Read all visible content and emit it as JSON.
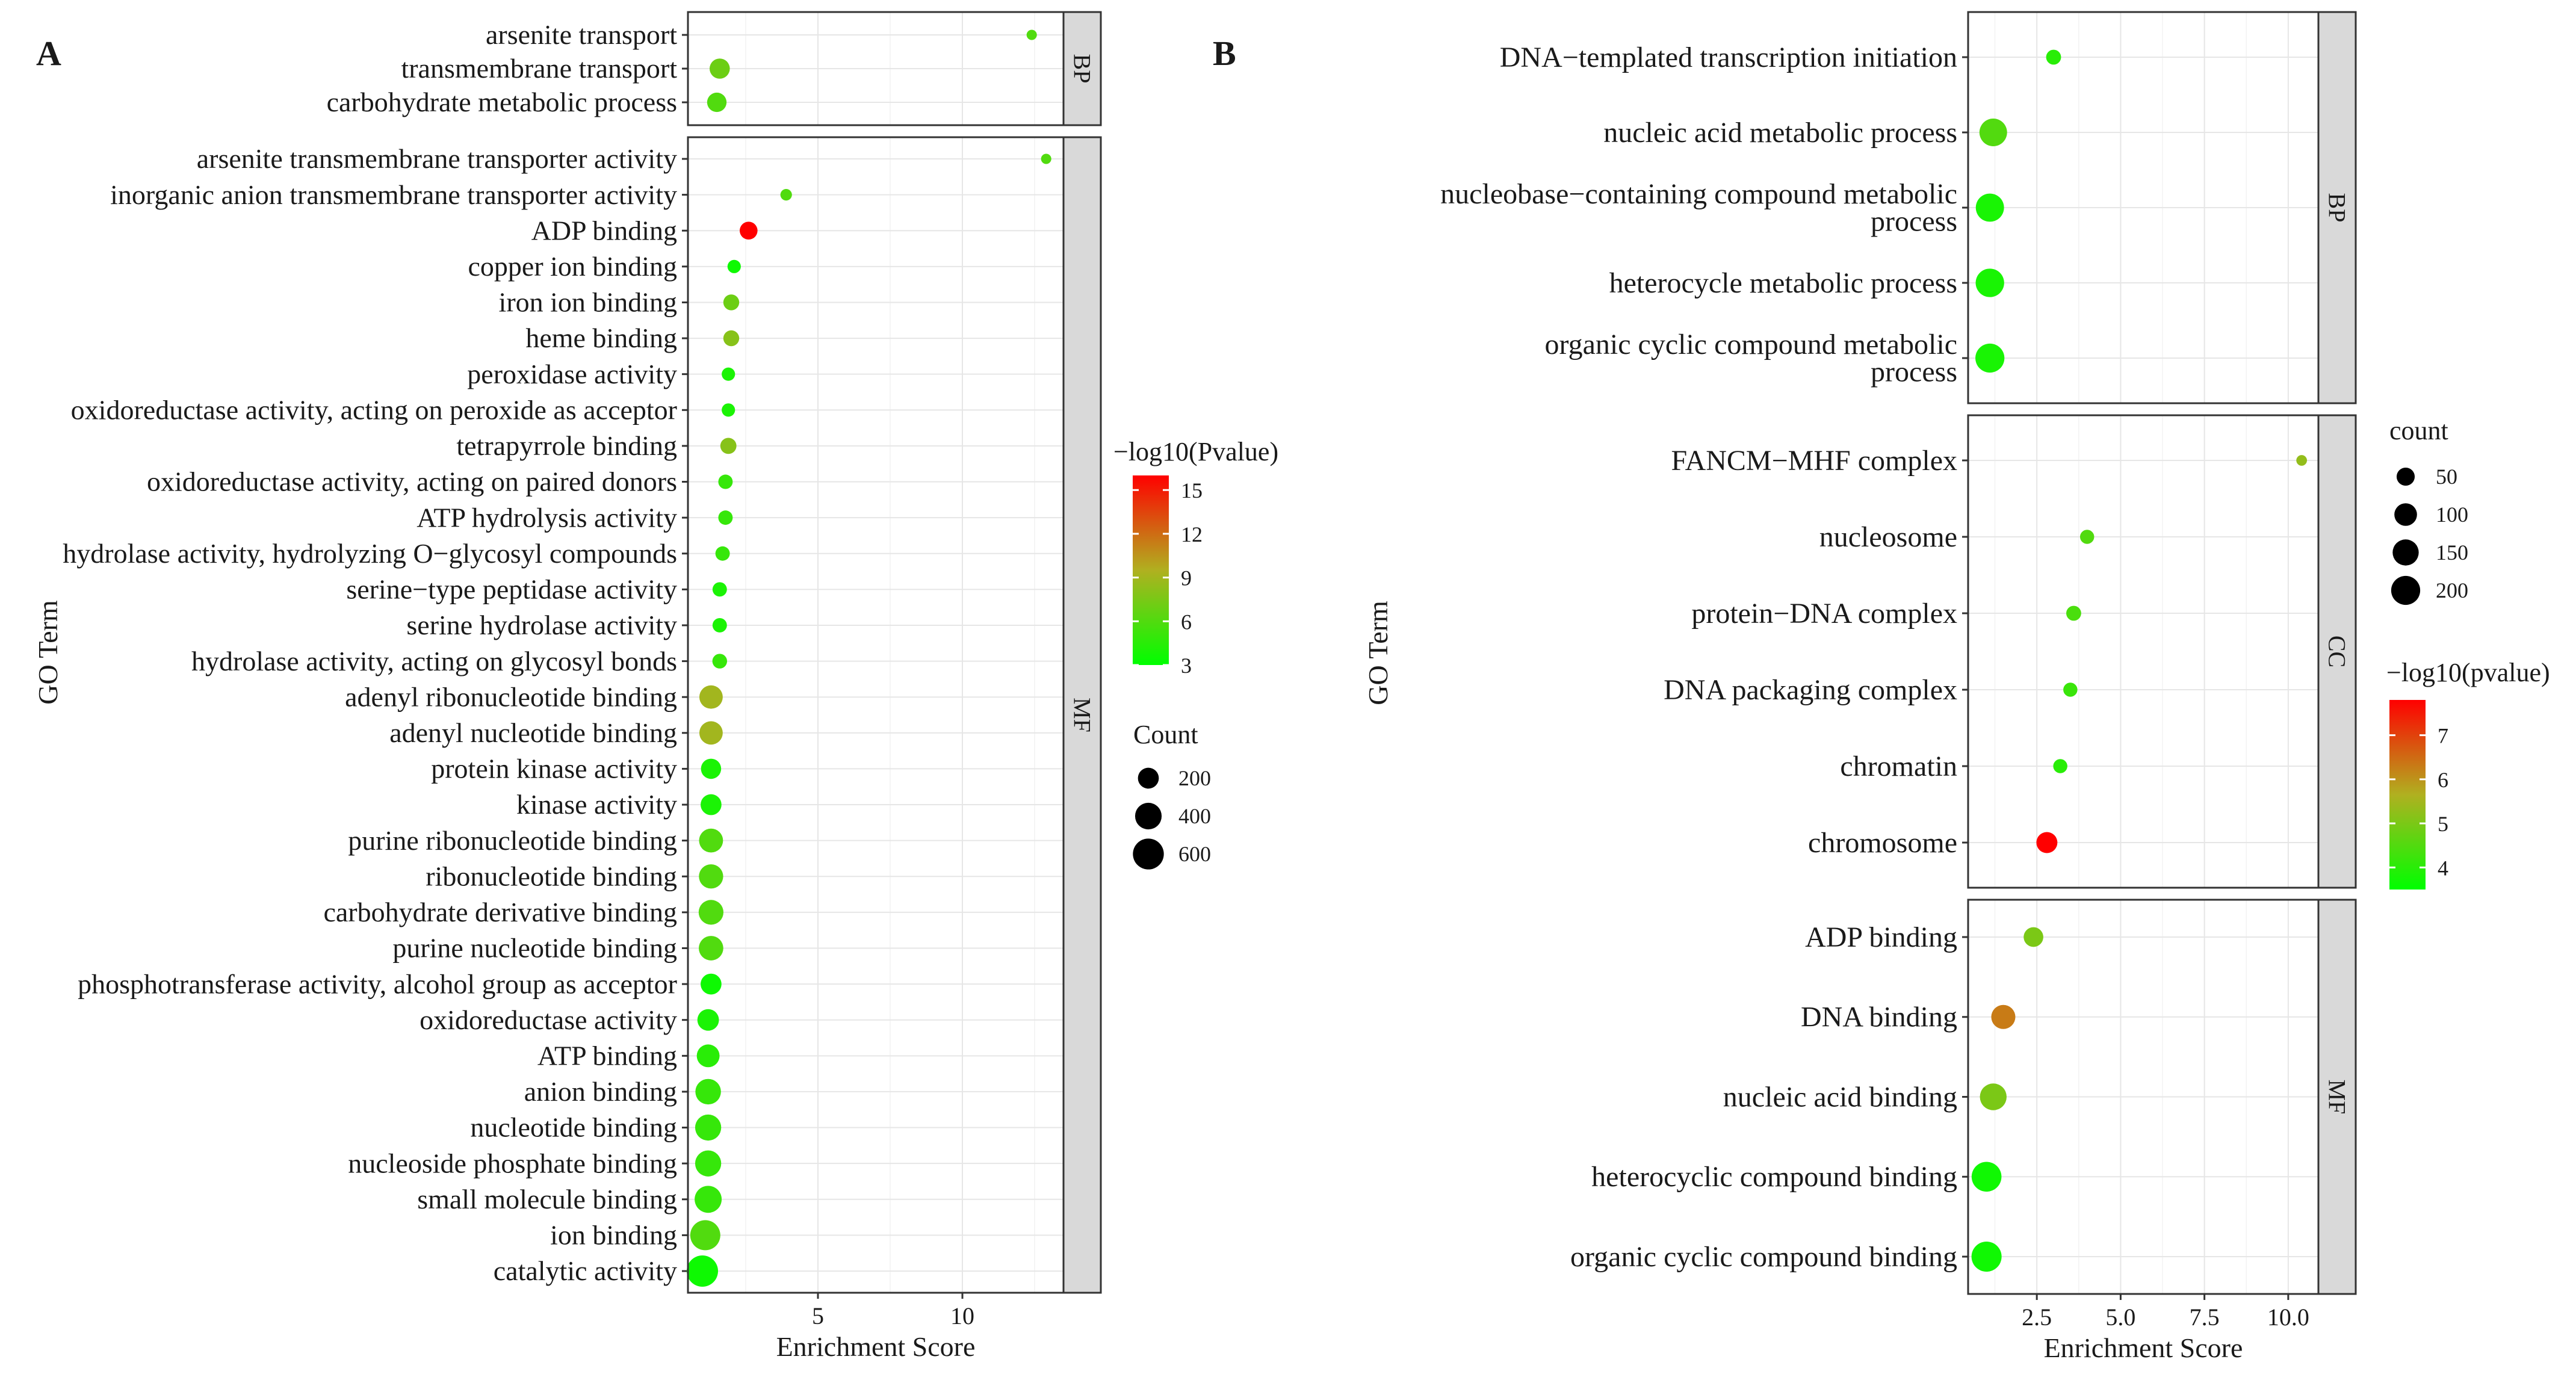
{
  "chart_data": [
    {
      "panel_label": "A",
      "type": "scatter",
      "xlabel": "Enrichment Score",
      "ylabel": "GO Term",
      "xlim": [
        0.5,
        13.5
      ],
      "xticks": [
        5,
        10
      ],
      "grid": true,
      "color_legend": {
        "title": "−log10(Pvalue)",
        "min": 3,
        "max": 16,
        "ticks": [
          15,
          12,
          9,
          6,
          3
        ]
      },
      "size_legend": {
        "title": "Count",
        "values": [
          200,
          400,
          600
        ]
      },
      "size_max_count": 620,
      "facets": [
        {
          "name": "BP",
          "terms": [
            {
              "label": "arsenite transport",
              "enrichment": 12.4,
              "pvalue": 6,
              "count": 10
            },
            {
              "label": "transmembrane transport",
              "enrichment": 1.6,
              "pvalue": 7,
              "count": 180
            },
            {
              "label": "carbohydrate metabolic process",
              "enrichment": 1.5,
              "pvalue": 6,
              "count": 160
            }
          ]
        },
        {
          "name": "MF",
          "terms": [
            {
              "label": "arsenite transmembrane transporter activity",
              "enrichment": 12.9,
              "pvalue": 6,
              "count": 10
            },
            {
              "label": "inorganic anion transmembrane transporter activity",
              "enrichment": 3.9,
              "pvalue": 6,
              "count": 20
            },
            {
              "label": "ADP binding",
              "enrichment": 2.6,
              "pvalue": 16,
              "count": 120
            },
            {
              "label": "copper ion binding",
              "enrichment": 2.1,
              "pvalue": 3.5,
              "count": 40
            },
            {
              "label": "iron ion binding",
              "enrichment": 2.0,
              "pvalue": 7,
              "count": 80
            },
            {
              "label": "heme binding",
              "enrichment": 2.0,
              "pvalue": 8,
              "count": 80
            },
            {
              "label": "peroxidase activity",
              "enrichment": 1.9,
              "pvalue": 4,
              "count": 40
            },
            {
              "label": "oxidoreductase activity, acting on peroxide as acceptor",
              "enrichment": 1.9,
              "pvalue": 4,
              "count": 40
            },
            {
              "label": "tetrapyrrole binding",
              "enrichment": 1.9,
              "pvalue": 8,
              "count": 85
            },
            {
              "label": "oxidoreductase activity, acting on paired donors",
              "enrichment": 1.8,
              "pvalue": 5,
              "count": 55
            },
            {
              "label": "ATP hydrolysis activity",
              "enrichment": 1.8,
              "pvalue": 5,
              "count": 55
            },
            {
              "label": "hydrolase activity, hydrolyzing O−glycosyl compounds",
              "enrichment": 1.7,
              "pvalue": 5,
              "count": 55
            },
            {
              "label": "serine−type peptidase activity",
              "enrichment": 1.6,
              "pvalue": 4,
              "count": 55
            },
            {
              "label": "serine hydrolase activity",
              "enrichment": 1.6,
              "pvalue": 4,
              "count": 55
            },
            {
              "label": "hydrolase activity, acting on glycosyl bonds",
              "enrichment": 1.6,
              "pvalue": 5,
              "count": 60
            },
            {
              "label": "adenyl ribonucleotide binding",
              "enrichment": 1.3,
              "pvalue": 9,
              "count": 280
            },
            {
              "label": "adenyl nucleotide binding",
              "enrichment": 1.3,
              "pvalue": 9,
              "count": 280
            },
            {
              "label": "protein kinase activity",
              "enrichment": 1.3,
              "pvalue": 4,
              "count": 180
            },
            {
              "label": "kinase activity",
              "enrichment": 1.3,
              "pvalue": 4,
              "count": 200
            },
            {
              "label": "purine ribonucleotide binding",
              "enrichment": 1.3,
              "pvalue": 6,
              "count": 300
            },
            {
              "label": "ribonucleotide binding",
              "enrichment": 1.3,
              "pvalue": 6,
              "count": 310
            },
            {
              "label": "carbohydrate derivative binding",
              "enrichment": 1.3,
              "pvalue": 6,
              "count": 330
            },
            {
              "label": "purine nucleotide binding",
              "enrichment": 1.3,
              "pvalue": 6,
              "count": 320
            },
            {
              "label": "phosphotransferase activity, alcohol group as acceptor",
              "enrichment": 1.3,
              "pvalue": 3.5,
              "count": 200
            },
            {
              "label": "oxidoreductase activity",
              "enrichment": 1.2,
              "pvalue": 4,
              "count": 220
            },
            {
              "label": "ATP binding",
              "enrichment": 1.2,
              "pvalue": 4.5,
              "count": 260
            },
            {
              "label": "anion binding",
              "enrichment": 1.2,
              "pvalue": 5,
              "count": 360
            },
            {
              "label": "nucleotide binding",
              "enrichment": 1.2,
              "pvalue": 5,
              "count": 380
            },
            {
              "label": "nucleoside phosphate binding",
              "enrichment": 1.2,
              "pvalue": 5,
              "count": 380
            },
            {
              "label": "small molecule binding",
              "enrichment": 1.2,
              "pvalue": 5,
              "count": 420
            },
            {
              "label": "ion binding",
              "enrichment": 1.1,
              "pvalue": 6,
              "count": 560
            },
            {
              "label": "catalytic activity",
              "enrichment": 1.0,
              "pvalue": 3.5,
              "count": 620
            }
          ]
        }
      ]
    },
    {
      "panel_label": "B",
      "type": "scatter",
      "xlabel": "Enrichment Score",
      "ylabel": "GO Term",
      "xlim": [
        0.45,
        10.9
      ],
      "xticks": [
        2.5,
        5.0,
        7.5,
        10.0
      ],
      "grid": true,
      "size_legend": {
        "title": "count",
        "values": [
          50,
          100,
          150,
          200
        ]
      },
      "color_legend": {
        "title": "−log10(pvalue)",
        "min": 3.5,
        "max": 7.8,
        "ticks": [
          7,
          6,
          5,
          4
        ]
      },
      "size_max_count": 220,
      "facets": [
        {
          "name": "BP",
          "terms": [
            {
              "label": "DNA−templated transcription initiation",
              "enrichment": 3.0,
              "pvalue": 4.0,
              "count": 25
            },
            {
              "label": "nucleic acid metabolic process",
              "enrichment": 1.2,
              "pvalue": 4.5,
              "count": 175
            },
            {
              "label": "nucleobase−containing compound metabolic process",
              "enrichment": 1.1,
              "pvalue": 3.8,
              "count": 185
            },
            {
              "label": "heterocycle metabolic process",
              "enrichment": 1.1,
              "pvalue": 3.8,
              "count": 190
            },
            {
              "label": "organic cyclic compound metabolic process",
              "enrichment": 1.1,
              "pvalue": 3.8,
              "count": 200
            }
          ]
        },
        {
          "name": "CC",
          "terms": [
            {
              "label": "FANCM−MHF complex",
              "enrichment": 10.4,
              "pvalue": 5.3,
              "count": 5
            },
            {
              "label": "nucleosome",
              "enrichment": 4.0,
              "pvalue": 4.5,
              "count": 20
            },
            {
              "label": "protein−DNA complex",
              "enrichment": 3.6,
              "pvalue": 4.4,
              "count": 25
            },
            {
              "label": "DNA packaging complex",
              "enrichment": 3.5,
              "pvalue": 4.2,
              "count": 20
            },
            {
              "label": "chromatin",
              "enrichment": 3.2,
              "pvalue": 4.0,
              "count": 20
            },
            {
              "label": "chromosome",
              "enrichment": 2.8,
              "pvalue": 7.8,
              "count": 80
            }
          ]
        },
        {
          "name": "MF",
          "terms": [
            {
              "label": "ADP binding",
              "enrichment": 2.4,
              "pvalue": 5.0,
              "count": 65
            },
            {
              "label": "DNA binding",
              "enrichment": 1.5,
              "pvalue": 6.3,
              "count": 120
            },
            {
              "label": "nucleic acid binding",
              "enrichment": 1.2,
              "pvalue": 5.0,
              "count": 160
            },
            {
              "label": "heterocyclic compound binding",
              "enrichment": 1.0,
              "pvalue": 3.7,
              "count": 215
            },
            {
              "label": "organic cyclic compound binding",
              "enrichment": 1.0,
              "pvalue": 3.7,
              "count": 220
            }
          ]
        }
      ]
    }
  ]
}
